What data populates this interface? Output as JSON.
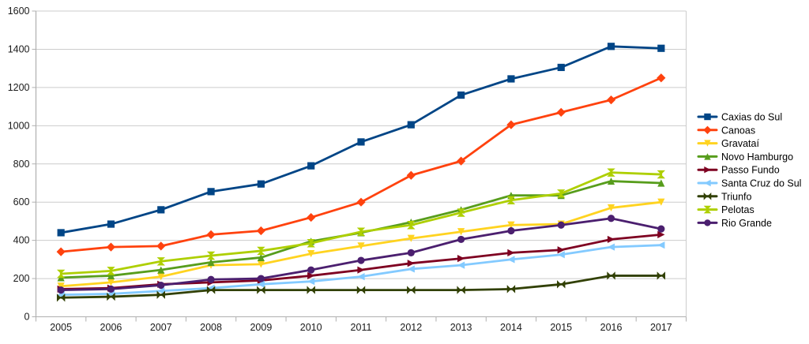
{
  "chart": {
    "background_color": "#ffffff",
    "grid_color": "#cccccc",
    "axis_color": "#b0b0b0",
    "text_color": "#1a1a1a"
  },
  "chart_data": {
    "type": "line",
    "title": "",
    "xlabel": "",
    "ylabel": "",
    "x": [
      "2005",
      "2006",
      "2007",
      "2008",
      "2009",
      "2010",
      "2011",
      "2012",
      "2013",
      "2014",
      "2015",
      "2016",
      "2017"
    ],
    "y_ticks": [
      "0",
      "200",
      "400",
      "600",
      "800",
      "1000",
      "1200",
      "1400",
      "1600"
    ],
    "ylim": [
      0,
      1600
    ],
    "ytick_step": 200,
    "grid": "horizontal",
    "legend_position": "right",
    "series": [
      {
        "name": "Caxias do Sul",
        "color": "#004586",
        "marker": "square",
        "values": [
          440,
          485,
          560,
          655,
          695,
          790,
          915,
          1005,
          1160,
          1245,
          1305,
          1415,
          1405
        ]
      },
      {
        "name": "Canoas",
        "color": "#ff420e",
        "marker": "diamond",
        "values": [
          340,
          365,
          370,
          430,
          450,
          520,
          600,
          740,
          815,
          1005,
          1070,
          1135,
          1250
        ]
      },
      {
        "name": "Gravataí",
        "color": "#ffd320",
        "marker": "arrow-down",
        "values": [
          160,
          180,
          210,
          270,
          275,
          330,
          370,
          410,
          445,
          480,
          485,
          570,
          600
        ]
      },
      {
        "name": "Novo Hamburgo",
        "color": "#579d1c",
        "marker": "arrow-up",
        "values": [
          205,
          215,
          245,
          285,
          310,
          395,
          440,
          495,
          560,
          635,
          635,
          710,
          700
        ]
      },
      {
        "name": "Passo Fundo",
        "color": "#7e0021",
        "marker": "arrow-right",
        "values": [
          145,
          150,
          170,
          180,
          190,
          215,
          245,
          280,
          305,
          335,
          350,
          405,
          430
        ]
      },
      {
        "name": "Santa Cruz do Sul",
        "color": "#83caff",
        "marker": "arrow-left",
        "values": [
          115,
          120,
          135,
          150,
          170,
          185,
          210,
          250,
          270,
          300,
          325,
          365,
          375
        ]
      },
      {
        "name": "Triunfo",
        "color": "#314004",
        "marker": "bowtie",
        "values": [
          100,
          105,
          115,
          140,
          140,
          140,
          140,
          140,
          140,
          145,
          170,
          215,
          215
        ]
      },
      {
        "name": "Pelotas",
        "color": "#aecf00",
        "marker": "sandglass",
        "values": [
          225,
          240,
          290,
          320,
          345,
          385,
          445,
          480,
          545,
          610,
          645,
          755,
          745
        ]
      },
      {
        "name": "Rio Grande",
        "color": "#4b1f6f",
        "marker": "circle",
        "values": [
          140,
          145,
          165,
          195,
          200,
          245,
          295,
          335,
          405,
          450,
          480,
          515,
          460
        ]
      }
    ]
  }
}
